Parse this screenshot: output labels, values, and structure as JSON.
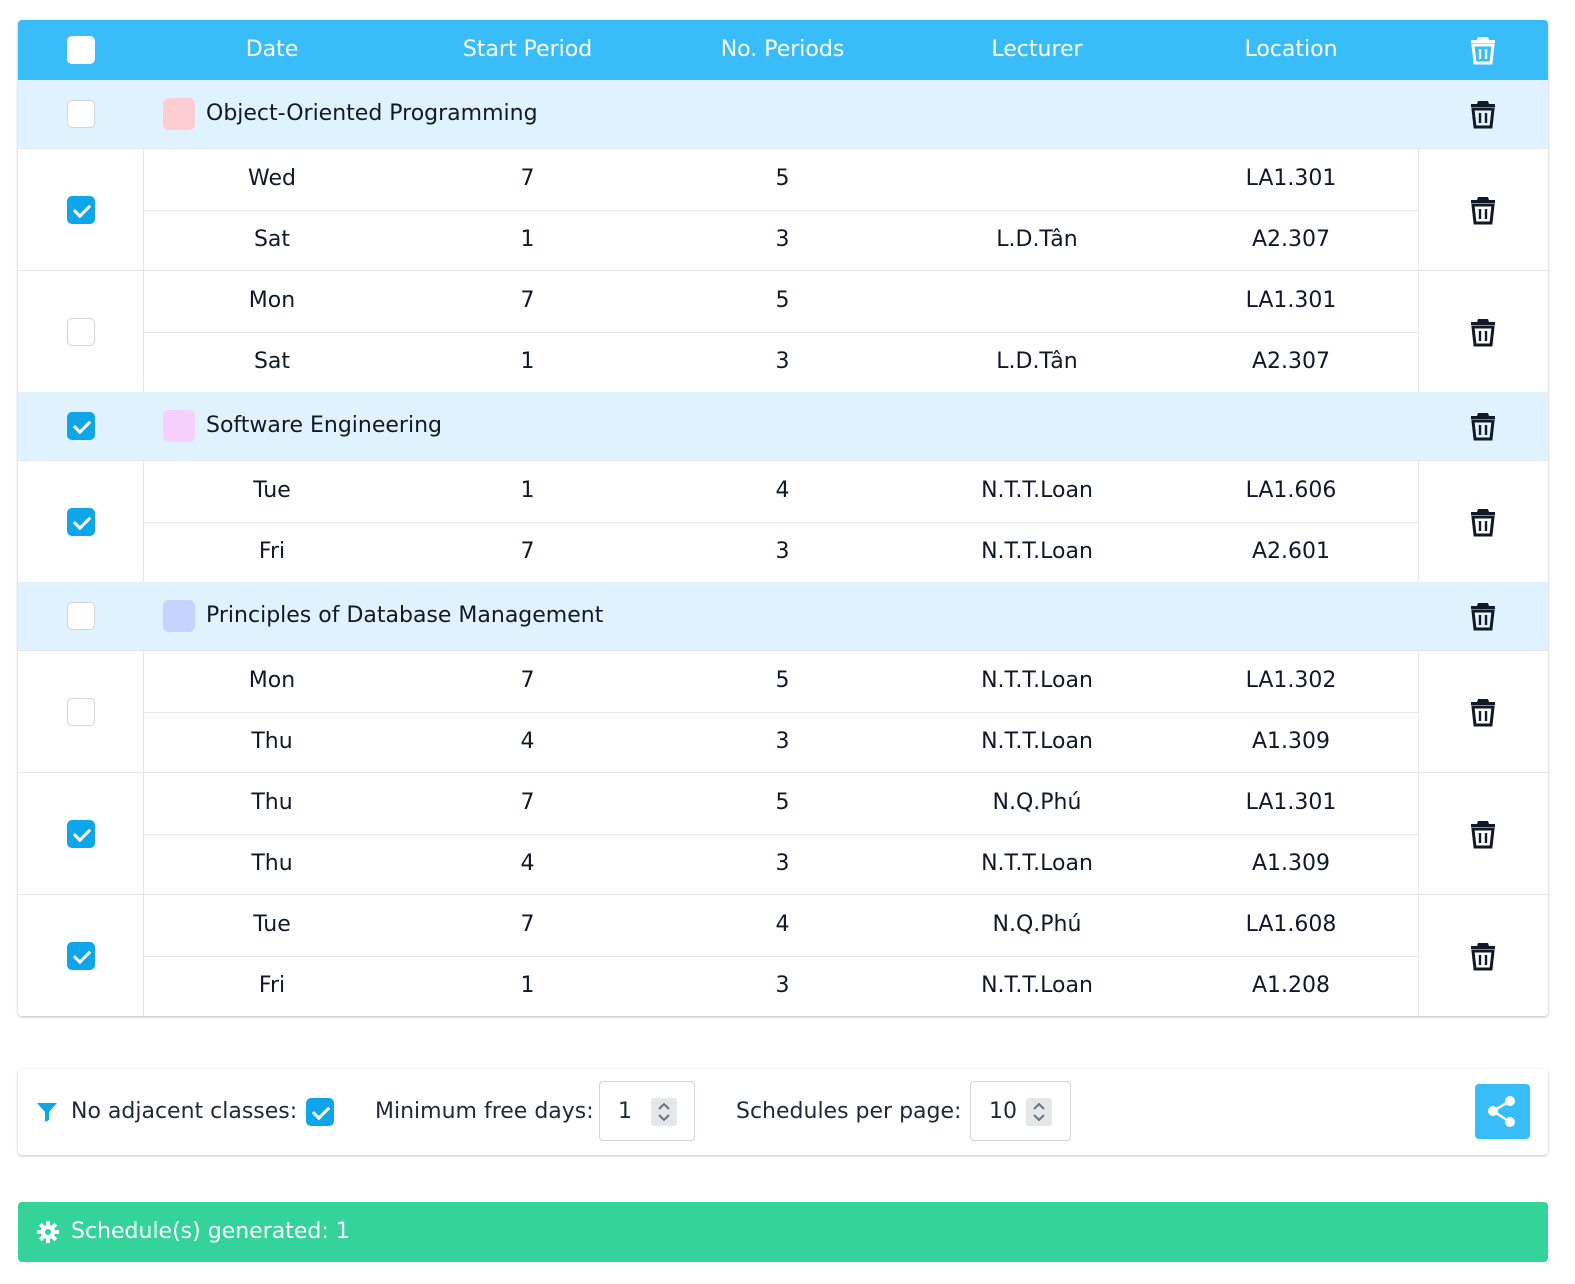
{
  "header": {
    "columns": {
      "date": "Date",
      "start_period": "Start Period",
      "no_periods": "No. Periods",
      "lecturer": "Lecturer",
      "location": "Location"
    },
    "select_all_checked": false
  },
  "courses": [
    {
      "name": "Object-Oriented Programming",
      "color": "#fecdd3",
      "checked": false,
      "groups": [
        {
          "checked": true,
          "rows": [
            {
              "date": "Wed",
              "start": "7",
              "periods": "5",
              "lecturer": "",
              "location": "LA1.301"
            },
            {
              "date": "Sat",
              "start": "1",
              "periods": "3",
              "lecturer": "L.D.Tân",
              "location": "A2.307"
            }
          ]
        },
        {
          "checked": false,
          "rows": [
            {
              "date": "Mon",
              "start": "7",
              "periods": "5",
              "lecturer": "",
              "location": "LA1.301"
            },
            {
              "date": "Sat",
              "start": "1",
              "periods": "3",
              "lecturer": "L.D.Tân",
              "location": "A2.307"
            }
          ]
        }
      ]
    },
    {
      "name": "Software Engineering",
      "color": "#f5d0fe",
      "checked": true,
      "groups": [
        {
          "checked": true,
          "rows": [
            {
              "date": "Tue",
              "start": "1",
              "periods": "4",
              "lecturer": "N.T.T.Loan",
              "location": "LA1.606"
            },
            {
              "date": "Fri",
              "start": "7",
              "periods": "3",
              "lecturer": "N.T.T.Loan",
              "location": "A2.601"
            }
          ]
        }
      ]
    },
    {
      "name": "Principles of Database Management",
      "color": "#c7d2fe",
      "checked": false,
      "groups": [
        {
          "checked": false,
          "rows": [
            {
              "date": "Mon",
              "start": "7",
              "periods": "5",
              "lecturer": "N.T.T.Loan",
              "location": "LA1.302"
            },
            {
              "date": "Thu",
              "start": "4",
              "periods": "3",
              "lecturer": "N.T.T.Loan",
              "location": "A1.309"
            }
          ]
        },
        {
          "checked": true,
          "rows": [
            {
              "date": "Thu",
              "start": "7",
              "periods": "5",
              "lecturer": "N.Q.Phú",
              "location": "LA1.301"
            },
            {
              "date": "Thu",
              "start": "4",
              "periods": "3",
              "lecturer": "N.T.T.Loan",
              "location": "A1.309"
            }
          ]
        },
        {
          "checked": true,
          "rows": [
            {
              "date": "Tue",
              "start": "7",
              "periods": "4",
              "lecturer": "N.Q.Phú",
              "location": "LA1.608"
            },
            {
              "date": "Fri",
              "start": "1",
              "periods": "3",
              "lecturer": "N.T.T.Loan",
              "location": "A1.208"
            }
          ]
        }
      ]
    }
  ],
  "filters": {
    "no_adjacent_label": "No adjacent classes:",
    "no_adjacent_checked": true,
    "min_free_days_label": "Minimum free days:",
    "min_free_days_value": "1",
    "per_page_label": "Schedules per page:",
    "per_page_value": "10",
    "filter_icon": "filter-icon",
    "share_icon": "share-icon"
  },
  "status": {
    "text": "Schedule(s) generated: 1",
    "icon": "gear-icon"
  },
  "colors": {
    "header": "#38bdf8",
    "course_row": "#e0f2fe",
    "checkbox_on": "#0ea5e9",
    "status_bar": "#34d399"
  }
}
